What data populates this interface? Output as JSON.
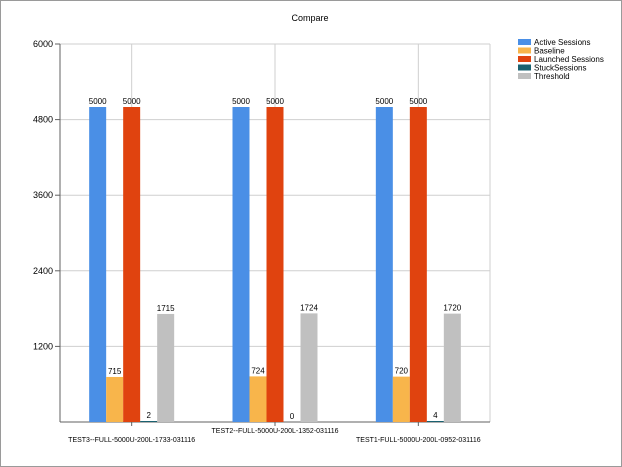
{
  "chart_data": {
    "type": "bar",
    "title": "Compare",
    "xlabel": "",
    "ylabel": "",
    "ylim": [
      0,
      6000
    ],
    "yticks": [
      1200,
      2400,
      3600,
      4800,
      6000
    ],
    "grid": true,
    "legend_position": "top-right",
    "categories": [
      "TEST3--FULL-5000U-200L-1733-031116",
      "TEST2--FULL-5000U-200L-1352-031116",
      "TEST1-FULL-5000U-200L-0952-031116"
    ],
    "series": [
      {
        "name": "Active Sessions",
        "color": "#4a8fe6",
        "values": [
          5000,
          5000,
          5000
        ]
      },
      {
        "name": "Baseline",
        "color": "#f8b54b",
        "values": [
          715,
          724,
          720
        ]
      },
      {
        "name": "Launched Sessions",
        "color": "#e0430f",
        "values": [
          5000,
          5000,
          5000
        ]
      },
      {
        "name": "StuckSessions",
        "color": "#1a6170",
        "values": [
          2,
          0,
          4
        ]
      },
      {
        "name": "Threshold",
        "color": "#c0c0c0",
        "values": [
          1715,
          1724,
          1720
        ]
      }
    ]
  }
}
